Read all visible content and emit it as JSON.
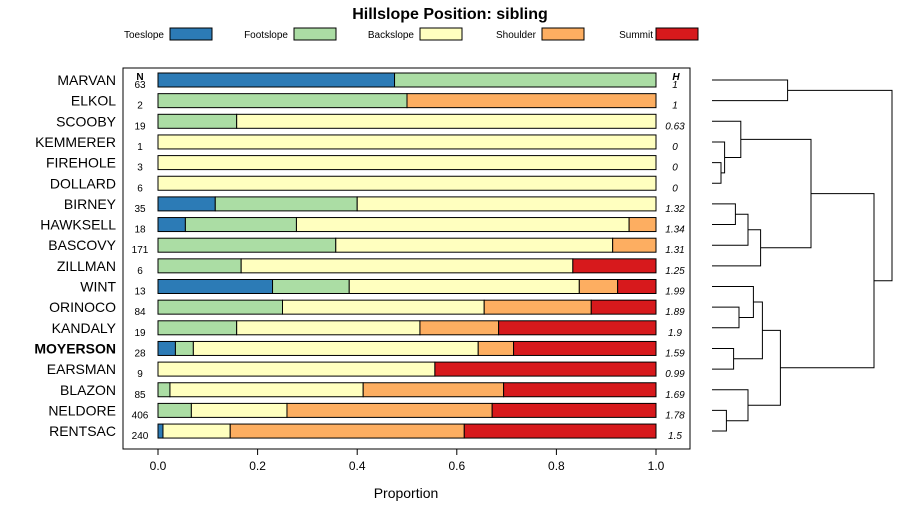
{
  "chart_data": {
    "type": "bar",
    "orientation": "horizontal",
    "stacked": true,
    "title": "Hillslope Position: sibling",
    "xlabel": "Proportion",
    "ylabel": "",
    "xlim": [
      0,
      1
    ],
    "x_ticks": [
      "0.0",
      "0.2",
      "0.4",
      "0.6",
      "0.8",
      "1.0"
    ],
    "n_header": "N",
    "h_header": "H",
    "highlight_category": "MOYERSON",
    "legend_position": "top",
    "series": [
      {
        "name": "Toeslope",
        "color": "#2C7BB6",
        "values": [
          0.475,
          0,
          0,
          0,
          0,
          0,
          0.115,
          0.055,
          0,
          0,
          0.23,
          0,
          0,
          0.035,
          0,
          0,
          0,
          0.01
        ]
      },
      {
        "name": "Footslope",
        "color": "#ABDDA4",
        "values": [
          0.525,
          0.5,
          0.158,
          0,
          0,
          0,
          0.285,
          0.223,
          0.357,
          0.167,
          0.154,
          0.25,
          0.158,
          0.036,
          0,
          0.024,
          0.067,
          0
        ]
      },
      {
        "name": "Backslope",
        "color": "#FFFFBF",
        "values": [
          0,
          0,
          0.842,
          1,
          1,
          1,
          0.6,
          0.668,
          0.556,
          0.666,
          0.462,
          0.405,
          0.368,
          0.572,
          0.556,
          0.388,
          0.192,
          0.135
        ]
      },
      {
        "name": "Shoulder",
        "color": "#FDAE61",
        "values": [
          0,
          0.5,
          0,
          0,
          0,
          0,
          0,
          0.054,
          0.087,
          0,
          0.077,
          0.215,
          0.158,
          0.071,
          0,
          0.282,
          0.412,
          0.47
        ]
      },
      {
        "name": "Summit",
        "color": "#D7191C",
        "values": [
          0,
          0,
          0,
          0,
          0,
          0,
          0,
          0,
          0,
          0.167,
          0.077,
          0.13,
          0.316,
          0.286,
          0.444,
          0.306,
          0.329,
          0.385
        ]
      }
    ],
    "rows": [
      {
        "name": "MARVAN",
        "n": "63",
        "h": "1"
      },
      {
        "name": "ELKOL",
        "n": "2",
        "h": "1"
      },
      {
        "name": "SCOOBY",
        "n": "19",
        "h": "0.63"
      },
      {
        "name": "KEMMERER",
        "n": "1",
        "h": "0"
      },
      {
        "name": "FIREHOLE",
        "n": "3",
        "h": "0"
      },
      {
        "name": "DOLLARD",
        "n": "6",
        "h": "0"
      },
      {
        "name": "BIRNEY",
        "n": "35",
        "h": "1.32"
      },
      {
        "name": "HAWKSELL",
        "n": "18",
        "h": "1.34"
      },
      {
        "name": "BASCOVY",
        "n": "171",
        "h": "1.31"
      },
      {
        "name": "ZILLMAN",
        "n": "6",
        "h": "1.25"
      },
      {
        "name": "WINT",
        "n": "13",
        "h": "1.99"
      },
      {
        "name": "ORINOCO",
        "n": "84",
        "h": "1.89"
      },
      {
        "name": "KANDALY",
        "n": "19",
        "h": "1.9"
      },
      {
        "name": "MOYERSON",
        "n": "28",
        "h": "1.59"
      },
      {
        "name": "EARSMAN",
        "n": "9",
        "h": "0.99"
      },
      {
        "name": "BLAZON",
        "n": "85",
        "h": "1.69"
      },
      {
        "name": "NELDORE",
        "n": "406",
        "h": "1.78"
      },
      {
        "name": "RENTSAC",
        "n": "240",
        "h": "1.5"
      }
    ],
    "dendrogram": {
      "leaf_order": [
        "MARVAN",
        "ELKOL",
        "SCOOBY",
        "KEMMERER",
        "FIREHOLE",
        "DOLLARD",
        "BIRNEY",
        "HAWKSELL",
        "BASCOVY",
        "ZILLMAN",
        "WINT",
        "ORINOCO",
        "KANDALY",
        "MOYERSON",
        "EARSMAN",
        "BLAZON",
        "NELDORE",
        "RENTSAC"
      ],
      "merges": [
        [
          0,
          1,
          0.42
        ],
        [
          4,
          5,
          0.05
        ],
        [
          3,
          19,
          0.07
        ],
        [
          2,
          20,
          0.16
        ],
        [
          6,
          7,
          0.13
        ],
        [
          22,
          8,
          0.2
        ],
        [
          23,
          9,
          0.27
        ],
        [
          21,
          24,
          0.55
        ],
        [
          11,
          12,
          0.15
        ],
        [
          10,
          26,
          0.23
        ],
        [
          13,
          14,
          0.12
        ],
        [
          27,
          28,
          0.28
        ],
        [
          16,
          17,
          0.08
        ],
        [
          15,
          30,
          0.2
        ],
        [
          29,
          31,
          0.38
        ],
        [
          25,
          32,
          0.9
        ],
        [
          18,
          33,
          1.0
        ]
      ]
    }
  }
}
